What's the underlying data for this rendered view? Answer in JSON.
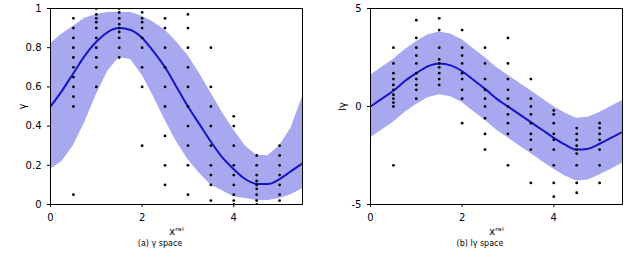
{
  "chart_data": [
    {
      "type": "scatter",
      "caption": "(a) γ space",
      "xlabel": "xʳᵉˡ",
      "ylabel": "γ",
      "xlim": [
        0,
        5.5
      ],
      "ylim": [
        0,
        1
      ],
      "xticks": [
        0,
        2,
        4
      ],
      "yticks": [
        0,
        0.2,
        0.4,
        0.6,
        0.8,
        1
      ],
      "series": [
        {
          "type": "area",
          "color": "#a8a8f0",
          "x": [
            0,
            0.25,
            0.5,
            0.75,
            1,
            1.25,
            1.5,
            1.75,
            2,
            2.25,
            2.5,
            2.75,
            3,
            3.25,
            3.5,
            3.75,
            4,
            4.25,
            4.5,
            4.75,
            5,
            5.25,
            5.5
          ],
          "lower": [
            0.18,
            0.22,
            0.3,
            0.42,
            0.56,
            0.68,
            0.75,
            0.74,
            0.66,
            0.55,
            0.43,
            0.32,
            0.23,
            0.16,
            0.1,
            0.07,
            0.04,
            0.03,
            0.02,
            0.02,
            0.03,
            0.05,
            0.08
          ],
          "upper": [
            0.82,
            0.87,
            0.91,
            0.95,
            0.97,
            0.98,
            0.98,
            0.98,
            0.96,
            0.93,
            0.89,
            0.83,
            0.76,
            0.67,
            0.57,
            0.47,
            0.38,
            0.3,
            0.25,
            0.25,
            0.3,
            0.39,
            0.55
          ]
        },
        {
          "type": "line",
          "color": "#1414c8",
          "x": [
            0,
            0.25,
            0.5,
            0.75,
            1,
            1.25,
            1.5,
            1.75,
            2,
            2.25,
            2.5,
            2.75,
            3,
            3.25,
            3.5,
            3.75,
            4,
            4.25,
            4.5,
            4.75,
            5,
            5.25,
            5.5
          ],
          "values": [
            0.5,
            0.58,
            0.67,
            0.76,
            0.83,
            0.88,
            0.9,
            0.89,
            0.85,
            0.78,
            0.7,
            0.6,
            0.5,
            0.41,
            0.32,
            0.24,
            0.18,
            0.13,
            0.105,
            0.105,
            0.13,
            0.17,
            0.21
          ]
        },
        {
          "type": "scatter",
          "color": "#000000",
          "x": [
            0.5,
            0.5,
            0.5,
            0.5,
            0.5,
            0.5,
            0.5,
            0.5,
            0.5,
            0.5,
            0.5,
            1,
            1,
            1,
            1,
            1,
            1,
            1,
            1,
            1,
            1,
            1.5,
            1.5,
            1.5,
            1.5,
            1.5,
            1.5,
            1.5,
            1.5,
            1.5,
            2,
            2,
            2,
            2,
            2,
            2,
            2,
            2,
            2,
            2.5,
            2.5,
            2.5,
            2.5,
            2.5,
            2.5,
            2.5,
            2.5,
            2.5,
            3,
            3,
            3,
            3,
            3,
            3,
            3,
            3,
            3,
            3,
            3.5,
            3.5,
            3.5,
            3.5,
            3.5,
            3.5,
            3.5,
            3.5,
            3.5,
            4,
            4,
            4,
            4,
            4,
            4,
            4,
            4,
            4,
            4.5,
            4.5,
            4.5,
            4.5,
            4.5,
            4.5,
            4.5,
            4.5,
            4.5,
            5,
            5,
            5,
            5,
            5,
            5,
            5
          ],
          "values": [
            0.05,
            0.5,
            0.55,
            0.6,
            0.65,
            0.7,
            0.75,
            0.8,
            0.85,
            0.9,
            0.95,
            0.6,
            0.7,
            0.75,
            0.8,
            0.85,
            0.9,
            0.93,
            0.95,
            0.97,
            1.0,
            0.75,
            0.8,
            0.85,
            0.88,
            0.9,
            0.92,
            0.95,
            0.98,
            1.0,
            0.3,
            0.6,
            0.7,
            0.8,
            0.85,
            0.9,
            0.93,
            0.95,
            0.98,
            0.1,
            0.2,
            0.35,
            0.5,
            0.6,
            0.7,
            0.8,
            0.9,
            0.95,
            0.05,
            0.2,
            0.3,
            0.4,
            0.5,
            0.6,
            0.7,
            0.8,
            0.9,
            0.97,
            0.02,
            0.1,
            0.15,
            0.2,
            0.3,
            0.4,
            0.5,
            0.6,
            0.8,
            0.0,
            0.02,
            0.05,
            0.1,
            0.15,
            0.2,
            0.3,
            0.4,
            0.45,
            0.0,
            0.02,
            0.05,
            0.08,
            0.1,
            0.12,
            0.15,
            0.2,
            0.25,
            0.02,
            0.05,
            0.1,
            0.15,
            0.2,
            0.25,
            0.3
          ]
        }
      ]
    },
    {
      "type": "scatter",
      "caption": "(b) lγ space",
      "xlabel": "xʳᵉˡ",
      "ylabel": "lγ",
      "xlim": [
        0,
        5.5
      ],
      "ylim": [
        -5,
        5
      ],
      "xticks": [
        0,
        2,
        4
      ],
      "yticks": [
        -5,
        0,
        5
      ],
      "series": [
        {
          "type": "area",
          "color": "#a8a8f0",
          "x": [
            0,
            0.25,
            0.5,
            0.75,
            1,
            1.25,
            1.5,
            1.75,
            2,
            2.25,
            2.5,
            2.75,
            3,
            3.25,
            3.5,
            3.75,
            4,
            4.25,
            4.5,
            4.75,
            5,
            5.25,
            5.5
          ],
          "lower": [
            -1.6,
            -1.2,
            -0.8,
            -0.3,
            0.1,
            0.45,
            0.6,
            0.5,
            0.2,
            -0.25,
            -0.7,
            -1.2,
            -1.6,
            -2.0,
            -2.4,
            -2.8,
            -3.2,
            -3.55,
            -3.8,
            -3.75,
            -3.5,
            -3.2,
            -2.9
          ],
          "upper": [
            1.6,
            2.0,
            2.4,
            2.9,
            3.3,
            3.65,
            3.8,
            3.7,
            3.4,
            2.95,
            2.5,
            2.0,
            1.6,
            1.2,
            0.8,
            0.4,
            0,
            -0.35,
            -0.6,
            -0.55,
            -0.3,
            0,
            0.3
          ]
        },
        {
          "type": "line",
          "color": "#1414c8",
          "x": [
            0,
            0.25,
            0.5,
            0.75,
            1,
            1.25,
            1.5,
            1.75,
            2,
            2.25,
            2.5,
            2.75,
            3,
            3.25,
            3.5,
            3.75,
            4,
            4.25,
            4.5,
            4.75,
            5,
            5.25,
            5.5
          ],
          "values": [
            0,
            0.4,
            0.8,
            1.3,
            1.7,
            2.05,
            2.2,
            2.1,
            1.8,
            1.35,
            0.9,
            0.4,
            0,
            -0.4,
            -0.8,
            -1.2,
            -1.6,
            -1.95,
            -2.2,
            -2.15,
            -1.9,
            -1.6,
            -1.3
          ]
        },
        {
          "type": "scatter",
          "color": "#000000",
          "x": [
            0.5,
            0.5,
            0.5,
            0.5,
            0.5,
            0.5,
            0.5,
            0.5,
            0.5,
            0.5,
            0.5,
            1,
            1,
            1,
            1,
            1,
            1,
            1,
            1,
            1,
            1,
            1.5,
            1.5,
            1.5,
            1.5,
            1.5,
            1.5,
            1.5,
            1.5,
            1.5,
            2,
            2,
            2,
            2,
            2,
            2,
            2,
            2,
            2,
            2.5,
            2.5,
            2.5,
            2.5,
            2.5,
            2.5,
            2.5,
            2.5,
            2.5,
            3,
            3,
            3,
            3,
            3,
            3,
            3,
            3,
            3,
            3,
            3.5,
            3.5,
            3.5,
            3.5,
            3.5,
            3.5,
            3.5,
            3.5,
            3.5,
            4,
            4,
            4,
            4,
            4,
            4,
            4,
            4,
            4,
            4.5,
            4.5,
            4.5,
            4.5,
            4.5,
            4.5,
            4.5,
            4.5,
            4.5,
            5,
            5,
            5,
            5,
            5,
            5,
            5
          ],
          "values": [
            -3,
            0,
            0.2,
            0.4,
            0.6,
            0.85,
            1.1,
            1.4,
            1.7,
            2.2,
            3,
            0.4,
            0.85,
            1.1,
            1.4,
            1.7,
            2.2,
            2.6,
            3,
            3.5,
            4.4,
            1.1,
            1.4,
            1.7,
            2,
            2.2,
            2.4,
            3,
            3.9,
            4.5,
            -0.85,
            0.4,
            0.85,
            1.4,
            1.7,
            2.2,
            2.6,
            3,
            3.9,
            -2.2,
            -1.4,
            -0.6,
            0,
            0.4,
            0.85,
            1.4,
            2.2,
            3,
            -3,
            -1.4,
            -0.85,
            -0.4,
            0,
            0.4,
            0.85,
            1.4,
            2.2,
            3.5,
            -3.9,
            -2.2,
            -1.7,
            -1.4,
            -0.85,
            -0.4,
            0,
            0.4,
            1.4,
            -4.6,
            -3.9,
            -3,
            -2.2,
            -1.7,
            -1.4,
            -0.85,
            -0.4,
            -0.2,
            -4.4,
            -3.9,
            -3,
            -2.4,
            -2.2,
            -2,
            -1.7,
            -1.4,
            -1.1,
            -3.9,
            -3,
            -2.2,
            -1.7,
            -1.4,
            -1.1,
            -0.85
          ]
        }
      ]
    }
  ]
}
